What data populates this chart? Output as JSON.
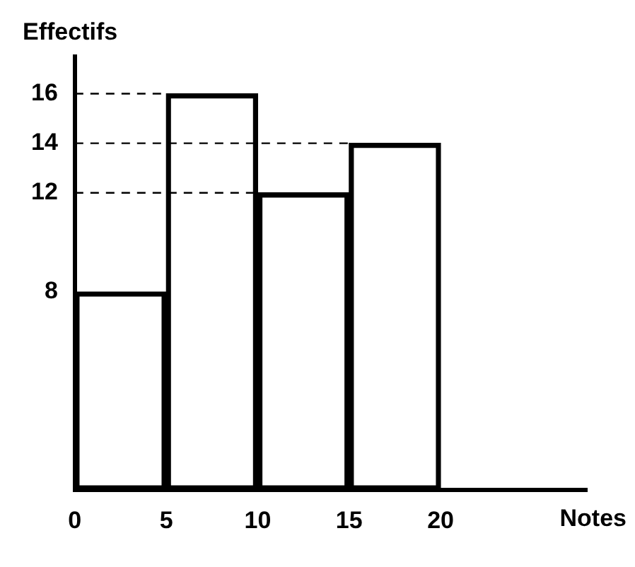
{
  "chart_data": {
    "type": "histogram",
    "xlabel": "Notes",
    "ylabel": "Effectifs",
    "bins": [
      0,
      5,
      10,
      15,
      20
    ],
    "values": [
      8,
      16,
      12,
      14
    ],
    "color": "#000000",
    "xlim": [
      0,
      28
    ],
    "xticks": [
      0,
      5,
      10,
      15,
      20
    ],
    "ylim": [
      0,
      17.5
    ],
    "yticks": [
      8,
      12,
      14,
      16
    ],
    "ref_lines": [
      {
        "axis": "y",
        "value": 16,
        "line_style": "dashed"
      },
      {
        "axis": "y",
        "value": 14,
        "line_style": "dashed"
      },
      {
        "axis": "y",
        "value": 12,
        "line_style": "dashed"
      }
    ],
    "grid": false,
    "legend": false
  }
}
